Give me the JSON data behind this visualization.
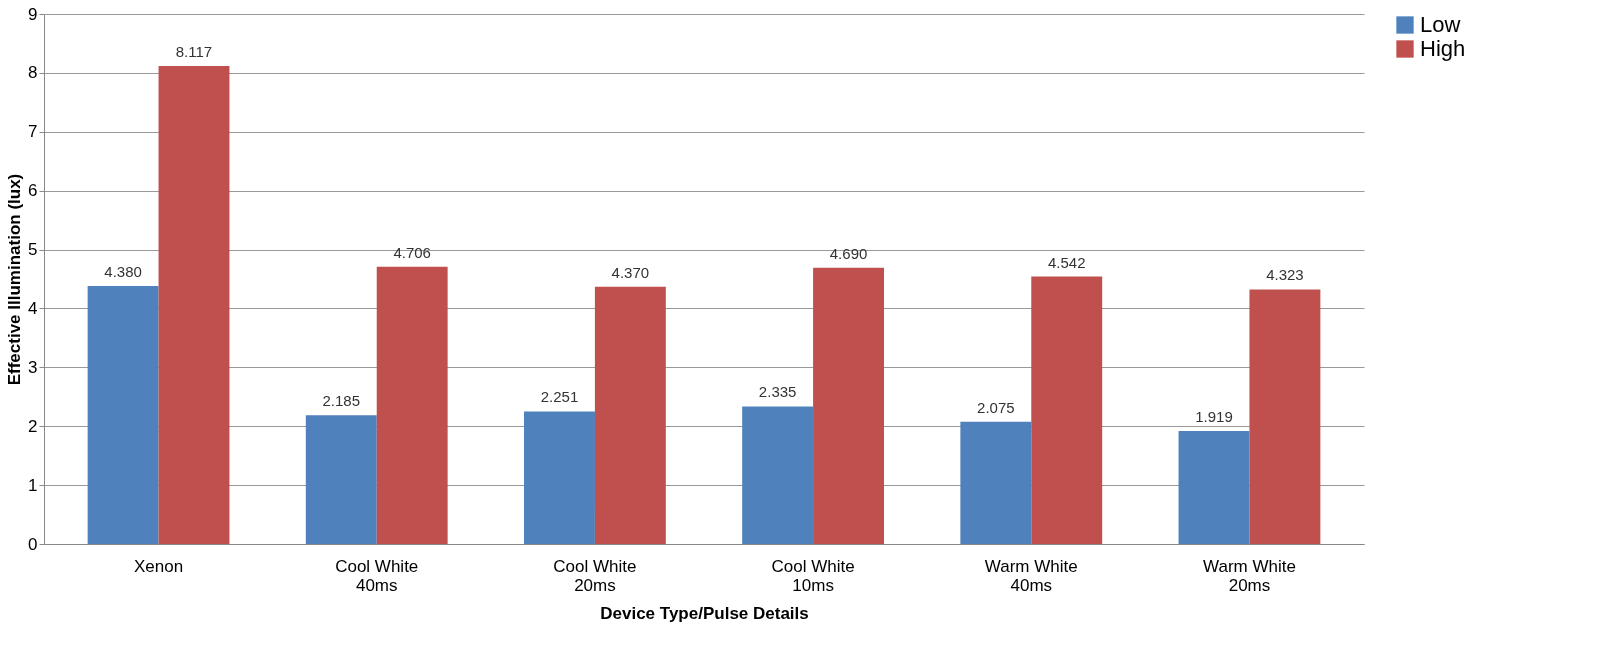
{
  "chart_data": {
    "type": "bar",
    "xlabel": "Device Type/Pulse  Details",
    "ylabel": "Effective Illumination (lux)",
    "categories": [
      "Xenon",
      "Cool White 40ms",
      "Cool White 20ms",
      "Cool White 10ms",
      "Warm White 40ms",
      "Warm White 20ms"
    ],
    "series": [
      {
        "name": "Low",
        "color": "#4f81bd",
        "values": [
          4.38,
          2.185,
          2.251,
          2.335,
          2.075,
          1.919
        ],
        "value_labels": [
          "4.380",
          "2.185",
          "2.251",
          "2.335",
          "2.075",
          "1.919"
        ]
      },
      {
        "name": "High",
        "color": "#c0504d",
        "values": [
          8.117,
          4.706,
          4.37,
          4.69,
          4.542,
          4.323
        ],
        "value_labels": [
          "8.117",
          "4.706",
          "4.370",
          "4.690",
          "4.542",
          "4.323"
        ]
      }
    ],
    "ylim": [
      0,
      9
    ],
    "yticks": [
      0,
      1,
      2,
      3,
      4,
      5,
      6,
      7,
      8,
      9
    ],
    "grid": "y",
    "legend": "right"
  }
}
